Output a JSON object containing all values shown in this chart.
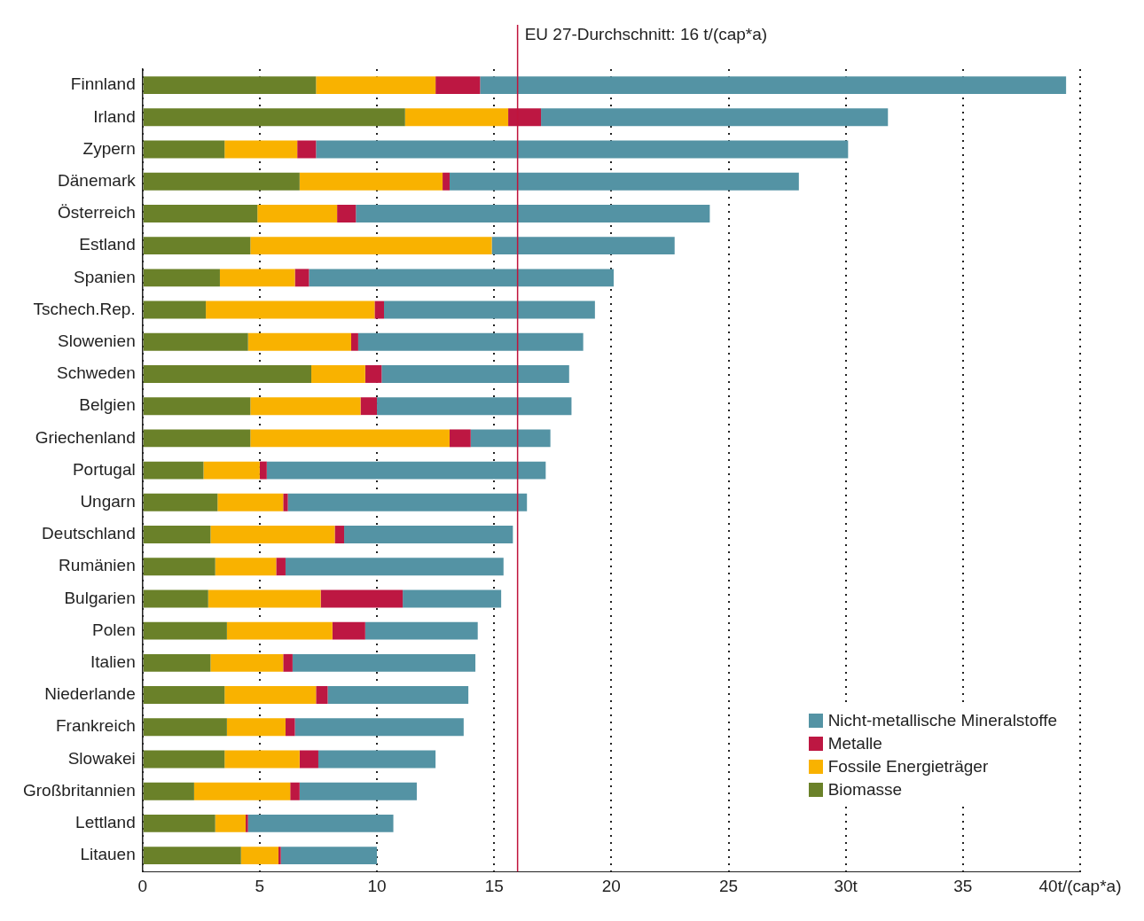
{
  "chart_data": {
    "type": "bar",
    "orientation": "horizontal",
    "stacked": true,
    "categories": [
      "Finnland",
      "Irland",
      "Zypern",
      "Dänemark",
      "Österreich",
      "Estland",
      "Spanien",
      "Tschech.Rep.",
      "Slowenien",
      "Schweden",
      "Belgien",
      "Griechenland",
      "Portugal",
      "Ungarn",
      "Deutschland",
      "Rumänien",
      "Bulgarien",
      "Polen",
      "Italien",
      "Niederlande",
      "Frankreich",
      "Slowakei",
      "Großbritannien",
      "Lettland",
      "Litauen"
    ],
    "series": [
      {
        "name": "Biomasse",
        "color": "#6a8129",
        "values": [
          7.4,
          11.2,
          3.5,
          6.7,
          4.9,
          4.6,
          3.3,
          2.7,
          4.5,
          7.2,
          4.6,
          4.6,
          2.6,
          3.2,
          2.9,
          3.1,
          2.8,
          3.6,
          2.9,
          3.5,
          3.6,
          3.5,
          2.2,
          3.1,
          4.2
        ]
      },
      {
        "name": "Fossile Energieträger",
        "color": "#f9b200",
        "values": [
          5.1,
          4.4,
          3.1,
          6.1,
          3.4,
          10.3,
          3.2,
          7.2,
          4.4,
          2.3,
          4.7,
          8.5,
          2.4,
          2.8,
          5.3,
          2.6,
          4.8,
          4.5,
          3.1,
          3.9,
          2.5,
          3.2,
          4.1,
          1.3,
          1.6
        ]
      },
      {
        "name": "Metalle",
        "color": "#bd1742",
        "values": [
          1.9,
          1.4,
          0.8,
          0.3,
          0.8,
          0,
          0.6,
          0.4,
          0.3,
          0.7,
          0.7,
          0.9,
          0.3,
          0.2,
          0.4,
          0.4,
          3.5,
          1.4,
          0.4,
          0.5,
          0.4,
          0.8,
          0.4,
          0.1,
          0.1
        ]
      },
      {
        "name": "Nicht-metallische Mineralstoffe",
        "color": "#5493a4",
        "values": [
          25.0,
          14.8,
          22.7,
          14.9,
          15.1,
          7.8,
          13.0,
          9.0,
          9.6,
          8.0,
          8.3,
          3.4,
          11.9,
          10.2,
          7.2,
          9.3,
          4.2,
          4.8,
          7.8,
          6.0,
          7.2,
          5.0,
          5.0,
          6.2,
          4.1
        ]
      }
    ],
    "xlim": [
      0,
      40
    ],
    "xticks": [
      0,
      5,
      10,
      15,
      20,
      25,
      {
        "value": 30,
        "label": "30t"
      },
      35,
      {
        "value": 40,
        "label": "40t/(cap*a)"
      }
    ],
    "grid": "x",
    "legend": "bottom right",
    "ref_lines": [
      {
        "axis": "x",
        "value": 16,
        "label": "EU 27-Durchschnitt: 16 t/(cap*a)",
        "color": "#c0143c"
      }
    ]
  }
}
